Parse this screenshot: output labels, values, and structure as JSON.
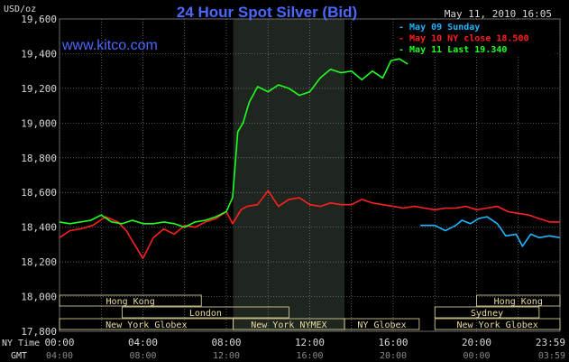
{
  "header": {
    "title": "24 Hour Spot Silver (Bid)",
    "unit": "USD/oz",
    "timestamp": "May 11, 2010 16:05",
    "site": "www.kitco.com"
  },
  "colors": {
    "background": "#000000",
    "grid": "#7f7f7f",
    "title": "#4a68ff",
    "site": "#4a68ff",
    "text": "#d8d8d8",
    "session_fill": "#1f261f",
    "market_box": "#e8dca0",
    "series_sunday": "#1fb6ff",
    "series_ny_close": "#ff2020",
    "series_last": "#20ff20"
  },
  "axis_labels": {
    "ny_time": "NY Time",
    "gmt": "GMT"
  },
  "chart_data": {
    "type": "line",
    "title": "24 Hour Spot Silver (Bid)",
    "ylabel": "USD/oz",
    "ylim": [
      17.8,
      19.6
    ],
    "yticks": [
      17.8,
      18.0,
      18.2,
      18.4,
      18.6,
      18.8,
      19.0,
      19.2,
      19.4,
      19.6
    ],
    "ytick_labels": [
      "17,800",
      "18,000",
      "18,200",
      "18,400",
      "18,600",
      "18,800",
      "19,000",
      "19,200",
      "19,400",
      "19,600"
    ],
    "xlim": [
      0,
      24
    ],
    "xticks": [
      0,
      4,
      8,
      12,
      16,
      20,
      24
    ],
    "xtick_labels_ny": [
      "00:00",
      "04:00",
      "08:00",
      "12:00",
      "16:00",
      "20:00",
      "23:59"
    ],
    "xtick_labels_gmt": [
      "04:00",
      "08:00",
      "12:00",
      "16:00",
      "20:00",
      "00:00",
      "03:59"
    ],
    "grid": true,
    "shaded_range_hours": [
      8.33,
      13.67
    ],
    "legend": {
      "position": "top-right",
      "entries": [
        {
          "label": "- May 09 Sunday",
          "series": 0
        },
        {
          "label": "- May 10 NY close 18.500",
          "series": 1
        },
        {
          "label": "- May 11 Last 19.340",
          "series": 2
        }
      ]
    },
    "series": [
      {
        "name": "May 09 Sunday",
        "color": "#1fb6ff",
        "x": [
          17.3,
          18.0,
          18.5,
          19.0,
          19.3,
          19.7,
          20.1,
          20.5,
          21.0,
          21.4,
          21.9,
          22.2,
          22.6,
          23.0,
          23.5,
          23.99
        ],
        "y": [
          18.41,
          18.41,
          18.38,
          18.41,
          18.44,
          18.42,
          18.45,
          18.46,
          18.42,
          18.35,
          18.36,
          18.29,
          18.36,
          18.34,
          18.35,
          18.34
        ]
      },
      {
        "name": "May 10 NY close 18.500",
        "color": "#ff2020",
        "x": [
          0,
          0.5,
          1.0,
          1.6,
          2.2,
          2.8,
          3.2,
          3.6,
          4.0,
          4.5,
          5.0,
          5.5,
          6.0,
          6.5,
          7.0,
          7.5,
          8.0,
          8.3,
          8.7,
          9.0,
          9.5,
          10.0,
          10.5,
          11.0,
          11.5,
          12.0,
          12.5,
          13.0,
          13.5,
          14.0,
          14.5,
          15.0,
          15.5,
          16.0,
          16.5,
          17.0,
          17.5,
          18.0,
          18.5,
          19.0,
          19.5,
          20.0,
          20.5,
          21.0,
          21.5,
          22.0,
          22.5,
          23.0,
          23.5,
          23.99
        ],
        "y": [
          18.34,
          18.38,
          18.39,
          18.41,
          18.46,
          18.43,
          18.38,
          18.3,
          18.22,
          18.34,
          18.39,
          18.36,
          18.41,
          18.4,
          18.43,
          18.45,
          18.49,
          18.42,
          18.5,
          18.52,
          18.53,
          18.61,
          18.52,
          18.56,
          18.57,
          18.53,
          18.52,
          18.54,
          18.53,
          18.53,
          18.56,
          18.54,
          18.53,
          18.52,
          18.51,
          18.52,
          18.51,
          18.5,
          18.51,
          18.51,
          18.52,
          18.5,
          18.51,
          18.52,
          18.49,
          18.48,
          18.47,
          18.45,
          18.43,
          18.43
        ]
      },
      {
        "name": "May 11 Last 19.340",
        "color": "#20ff20",
        "x": [
          0,
          0.5,
          1.0,
          1.5,
          2.0,
          2.5,
          3.0,
          3.5,
          4.0,
          4.5,
          5.0,
          5.5,
          6.0,
          6.5,
          7.0,
          7.5,
          8.0,
          8.3,
          8.55,
          8.8,
          9.1,
          9.5,
          10.0,
          10.5,
          11.0,
          11.5,
          12.0,
          12.5,
          13.0,
          13.5,
          14.0,
          14.5,
          15.0,
          15.5,
          15.9,
          16.3,
          16.7
        ],
        "y": [
          18.43,
          18.42,
          18.43,
          18.44,
          18.47,
          18.43,
          18.42,
          18.44,
          18.42,
          18.42,
          18.43,
          18.42,
          18.4,
          18.43,
          18.44,
          18.46,
          18.49,
          18.57,
          18.95,
          19.0,
          19.12,
          19.21,
          19.18,
          19.22,
          19.2,
          19.16,
          19.18,
          19.26,
          19.31,
          19.29,
          19.3,
          19.25,
          19.3,
          19.26,
          19.36,
          19.37,
          19.34
        ]
      }
    ],
    "markets": [
      {
        "name": "Hong Kong",
        "row": 0,
        "start": 0.0,
        "end": 6.8
      },
      {
        "name": "Hong Kong",
        "row": 0,
        "start": 20.0,
        "end": 24.0
      },
      {
        "name": "London",
        "row": 1,
        "start": 3.0,
        "end": 11.0
      },
      {
        "name": "Sydney",
        "row": 1,
        "start": 18.0,
        "end": 23.0
      },
      {
        "name": "New York Globex",
        "row": 2,
        "start": 0.0,
        "end": 8.33
      },
      {
        "name": "New York NYMEX",
        "row": 2,
        "start": 8.33,
        "end": 13.67
      },
      {
        "name": "NY Globex",
        "row": 2,
        "start": 13.67,
        "end": 17.25
      },
      {
        "name": "New York Globex",
        "row": 2,
        "start": 18.0,
        "end": 24.0
      }
    ]
  }
}
